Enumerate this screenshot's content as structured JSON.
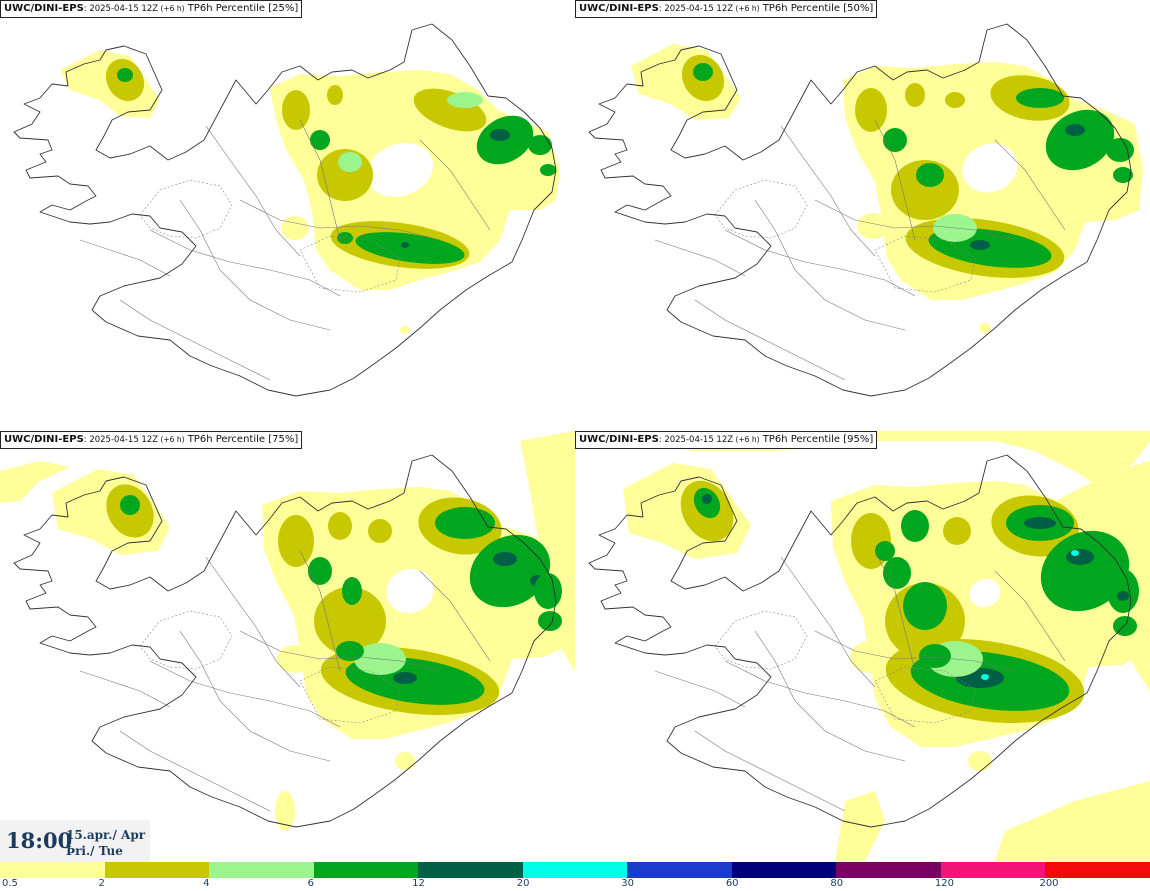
{
  "panels": [
    {
      "source": "UWC/DINI-EPS",
      "run": ": 2025-04-15 12Z",
      "lead": " (+6 h)",
      "field": " TP6h Percentile [25%]"
    },
    {
      "source": "UWC/DINI-EPS",
      "run": ": 2025-04-15 12Z",
      "lead": " (+6 h)",
      "field": " TP6h Percentile [50%]"
    },
    {
      "source": "UWC/DINI-EPS",
      "run": ": 2025-04-15 12Z",
      "lead": " (+6 h)",
      "field": " TP6h Percentile [75%]"
    },
    {
      "source": "UWC/DINI-EPS",
      "run": ": 2025-04-15 12Z",
      "lead": " (+6 h)",
      "field": " TP6h Percentile [95%]"
    }
  ],
  "valid_time": {
    "clock": "18:00",
    "date_line1": "15.apr./ Apr",
    "date_line2": "Þri./ Tue"
  },
  "legend": {
    "ticks": [
      "0.5",
      "2",
      "4",
      "6",
      "12",
      "20",
      "30",
      "60",
      "80",
      "120",
      "200"
    ],
    "colors": [
      "#ffff99",
      "#c8c800",
      "#9cf58c",
      "#00a61e",
      "#006046",
      "#00ffe6",
      "#1a3cc8",
      "#00007a",
      "#7a0064",
      "#f5147a",
      "#f50a0a"
    ]
  }
}
